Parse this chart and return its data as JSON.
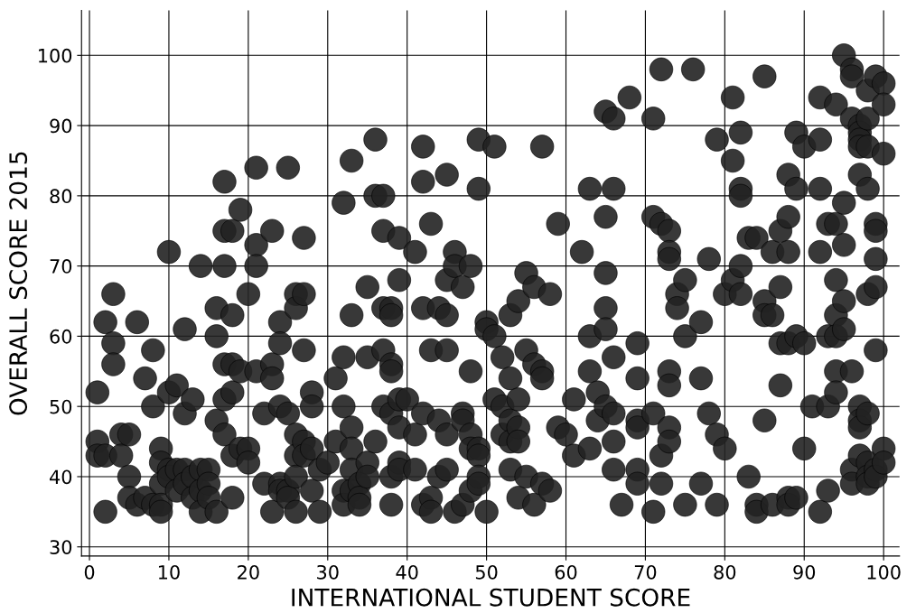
{
  "chart_data": {
    "type": "scatter",
    "xlabel": "INTERNATIONAL STUDENT SCORE",
    "ylabel": "OVERALL SCORE 2015",
    "xlim": [
      -1,
      102
    ],
    "ylim": [
      28.7,
      106.4
    ],
    "xticks": [
      0,
      10,
      20,
      30,
      40,
      50,
      60,
      70,
      80,
      90,
      100
    ],
    "yticks": [
      30,
      40,
      50,
      60,
      70,
      80,
      90,
      100
    ],
    "grid": true,
    "marker": "circle",
    "legend": false,
    "series": [
      {
        "color": "#222222",
        "x": [
          1,
          1,
          1,
          2,
          2,
          2,
          3,
          3,
          3,
          4,
          4,
          5,
          5,
          5,
          6,
          6,
          7,
          7,
          8,
          8,
          8,
          9,
          9,
          9,
          9,
          9,
          10,
          10,
          10,
          10,
          11,
          11,
          11,
          12,
          12,
          12,
          12,
          13,
          13,
          13,
          14,
          14,
          14,
          14,
          15,
          15,
          15,
          16,
          16,
          16,
          16,
          17,
          17,
          17,
          17,
          17,
          17,
          18,
          18,
          18,
          18,
          18,
          18,
          19,
          19,
          19,
          20,
          20,
          20,
          21,
          21,
          21,
          21,
          22,
          22,
          23,
          23,
          23,
          23,
          24,
          24,
          24,
          24,
          24,
          25,
          25,
          25,
          25,
          26,
          26,
          26,
          26,
          26,
          26,
          27,
          27,
          27,
          27,
          27,
          28,
          28,
          28,
          28,
          29,
          29,
          30,
          31,
          31,
          32,
          32,
          32,
          32,
          32,
          33,
          33,
          33,
          33,
          33,
          33,
          34,
          34,
          34,
          35,
          35,
          35,
          35,
          36,
          36,
          36,
          37,
          37,
          37,
          37,
          37,
          38,
          38,
          38,
          38,
          38,
          38,
          38,
          39,
          39,
          39,
          39,
          39,
          39,
          40,
          41,
          41,
          41,
          42,
          42,
          42,
          42,
          42,
          43,
          43,
          43,
          43,
          44,
          44,
          44,
          45,
          45,
          45,
          45,
          45,
          45,
          46,
          46,
          46,
          47,
          47,
          47,
          47,
          48,
          48,
          48,
          48,
          48,
          49,
          49,
          49,
          49,
          49,
          49,
          50,
          50,
          50,
          51,
          51,
          51,
          52,
          52,
          52,
          53,
          53,
          53,
          53,
          53,
          54,
          54,
          54,
          54,
          54,
          55,
          55,
          55,
          56,
          56,
          56,
          57,
          57,
          57,
          57,
          58,
          58,
          59,
          59,
          60,
          61,
          61,
          62,
          63,
          63,
          63,
          63,
          64,
          64,
          65,
          65,
          65,
          65,
          65,
          65,
          66,
          66,
          66,
          66,
          66,
          66,
          67,
          68,
          69,
          69,
          69,
          69,
          69,
          69,
          71,
          71,
          71,
          71,
          72,
          72,
          72,
          72,
          73,
          73,
          73,
          73,
          73,
          73,
          73,
          74,
          74,
          75,
          75,
          75,
          76,
          77,
          77,
          77,
          78,
          78,
          79,
          79,
          79,
          80,
          80,
          81,
          81,
          81,
          82,
          82,
          82,
          82,
          82,
          83,
          83,
          84,
          84,
          84,
          85,
          85,
          85,
          85,
          86,
          86,
          86,
          87,
          87,
          87,
          87,
          88,
          88,
          88,
          88,
          88,
          88,
          89,
          89,
          89,
          89,
          90,
          90,
          90,
          91,
          92,
          92,
          92,
          92,
          92,
          93,
          93,
          93,
          93,
          94,
          94,
          94,
          94,
          94,
          94,
          94,
          95,
          95,
          95,
          95,
          95,
          96,
          96,
          96,
          96,
          96,
          96,
          97,
          97,
          97,
          97,
          97,
          97,
          97,
          97,
          97,
          98,
          98,
          98,
          98,
          98,
          98,
          98,
          98,
          98,
          99,
          99,
          99,
          99,
          99,
          99,
          99,
          99,
          100,
          100,
          100,
          100,
          100
        ],
        "values": [
          52,
          45,
          43,
          43,
          62,
          35,
          66,
          59,
          56,
          46,
          43,
          46,
          40,
          37,
          62,
          36,
          54,
          37,
          58,
          50,
          36,
          44,
          42,
          39,
          36,
          35,
          72,
          52,
          41,
          40,
          53,
          41,
          38,
          61,
          49,
          41,
          39,
          51,
          40,
          37,
          70,
          41,
          38,
          35,
          41,
          39,
          37,
          64,
          60,
          48,
          35,
          82,
          75,
          70,
          56,
          51,
          46,
          75,
          63,
          56,
          52,
          43,
          37,
          78,
          55,
          44,
          66,
          44,
          42,
          84,
          73,
          70,
          55,
          49,
          39,
          75,
          56,
          54,
          35,
          62,
          59,
          50,
          39,
          38,
          84,
          49,
          38,
          37,
          66,
          64,
          46,
          43,
          40,
          35,
          74,
          66,
          58,
          45,
          43,
          52,
          50,
          44,
          38,
          41,
          35,
          42,
          54,
          45,
          79,
          57,
          50,
          38,
          36,
          85,
          63,
          47,
          44,
          41,
          38,
          39,
          37,
          36,
          67,
          57,
          42,
          40,
          88,
          80,
          45,
          80,
          75,
          64,
          58,
          50,
          64,
          63,
          56,
          55,
          49,
          40,
          36,
          74,
          68,
          51,
          47,
          42,
          41,
          51,
          72,
          46,
          41,
          87,
          82,
          64,
          49,
          36,
          76,
          58,
          37,
          35,
          64,
          48,
          40,
          83,
          68,
          63,
          58,
          46,
          41,
          72,
          70,
          35,
          67,
          49,
          48,
          36,
          70,
          55,
          46,
          44,
          38,
          88,
          81,
          44,
          43,
          40,
          39,
          62,
          61,
          35,
          87,
          60,
          51,
          57,
          50,
          46,
          63,
          54,
          48,
          45,
          41,
          65,
          51,
          47,
          45,
          37,
          69,
          58,
          40,
          67,
          56,
          36,
          87,
          55,
          54,
          39,
          66,
          38,
          76,
          47,
          46,
          51,
          43,
          72,
          81,
          60,
          55,
          44,
          52,
          48,
          92,
          77,
          69,
          64,
          61,
          50,
          91,
          81,
          57,
          49,
          45,
          41,
          36,
          94,
          59,
          54,
          48,
          47,
          41,
          39,
          91,
          77,
          49,
          35,
          98,
          76,
          43,
          39,
          75,
          72,
          71,
          55,
          53,
          47,
          45,
          66,
          64,
          68,
          60,
          36,
          98,
          62,
          54,
          39,
          71,
          49,
          88,
          46,
          36,
          66,
          44,
          94,
          85,
          68,
          89,
          81,
          80,
          70,
          66,
          74,
          40,
          74,
          36,
          35,
          97,
          65,
          63,
          48,
          72,
          63,
          36,
          75,
          67,
          59,
          53,
          83,
          77,
          72,
          59,
          37,
          36,
          89,
          81,
          60,
          37,
          87,
          59,
          44,
          50,
          94,
          88,
          81,
          72,
          35,
          76,
          60,
          50,
          38,
          93,
          76,
          68,
          63,
          60,
          55,
          52,
          100,
          79,
          73,
          65,
          61,
          98,
          97,
          91,
          55,
          41,
          39,
          90,
          89,
          88,
          87,
          83,
          50,
          48,
          47,
          43,
          95,
          91,
          87,
          81,
          66,
          49,
          42,
          40,
          39,
          97,
          76,
          75,
          71,
          67,
          58,
          41,
          40,
          96,
          93,
          86,
          44,
          42
        ]
      }
    ]
  }
}
